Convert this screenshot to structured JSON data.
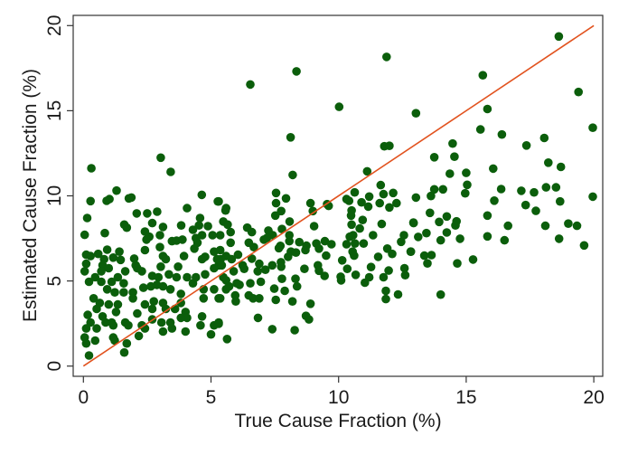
{
  "chart_data": {
    "type": "scatter",
    "title": "",
    "xlabel": "True Cause Fraction (%)",
    "ylabel": "Estimated Cause Fraction (%)",
    "xlim": [
      -0.4,
      20.35
    ],
    "ylim": [
      -0.6,
      20.6
    ],
    "xticks": [
      "0",
      "5",
      "10",
      "15",
      "20"
    ],
    "yticks": [
      "0",
      "5",
      "10",
      "15",
      "20"
    ],
    "grid": false,
    "legend": "none",
    "marker_color": "#0b5e0b",
    "reference_line": {
      "label": "",
      "x": [
        0,
        20
      ],
      "y": [
        0,
        20
      ],
      "color": "#e2531f"
    },
    "points": [
      [
        18.63,
        19.36
      ],
      [
        15.65,
        17.08
      ],
      [
        19.4,
        16.1
      ],
      [
        15.83,
        15.1
      ],
      [
        19.96,
        14.0
      ],
      [
        15.56,
        13.9
      ],
      [
        16.4,
        13.6
      ],
      [
        18.06,
        13.4
      ],
      [
        14.47,
        13.07
      ],
      [
        17.36,
        12.96
      ],
      [
        13.75,
        12.27
      ],
      [
        14.54,
        12.3
      ],
      [
        18.22,
        11.95
      ],
      [
        18.71,
        11.7
      ],
      [
        16.06,
        11.6
      ],
      [
        14.36,
        11.3
      ],
      [
        15.0,
        11.35
      ],
      [
        15.04,
        10.65
      ],
      [
        14.96,
        10.15
      ],
      [
        16.37,
        10.4
      ],
      [
        17.16,
        10.3
      ],
      [
        17.66,
        10.2
      ],
      [
        18.13,
        10.5
      ],
      [
        18.52,
        10.5
      ],
      [
        18.68,
        9.67
      ],
      [
        19.96,
        9.95
      ],
      [
        16.1,
        9.72
      ],
      [
        17.33,
        9.46
      ],
      [
        17.73,
        9.12
      ],
      [
        15.83,
        8.84
      ],
      [
        16.64,
        8.24
      ],
      [
        18.1,
        8.24
      ],
      [
        19.0,
        8.37
      ],
      [
        19.34,
        8.24
      ],
      [
        19.62,
        7.09
      ],
      [
        18.64,
        7.48
      ],
      [
        16.5,
        7.39
      ],
      [
        15.83,
        7.62
      ],
      [
        14.76,
        7.48
      ],
      [
        15.27,
        6.26
      ],
      [
        14.65,
        6.03
      ],
      [
        14.0,
        4.2
      ],
      [
        14.62,
        8.5
      ],
      [
        14.58,
        8.26
      ],
      [
        14.24,
        8.79
      ],
      [
        14.24,
        7.85
      ],
      [
        14.0,
        7.39
      ],
      [
        13.94,
        8.47
      ],
      [
        14.09,
        10.38
      ],
      [
        13.75,
        10.38
      ],
      [
        13.62,
        9.99
      ],
      [
        13.58,
        9.0
      ],
      [
        13.44,
        7.81
      ],
      [
        13.64,
        6.52
      ],
      [
        13.36,
        6.49
      ],
      [
        13.48,
        6.03
      ],
      [
        13.12,
        7.59
      ],
      [
        12.93,
        8.43
      ],
      [
        13.03,
        9.9
      ],
      [
        13.03,
        14.85
      ],
      [
        12.83,
        6.72
      ],
      [
        6.54,
        16.54
      ],
      [
        8.35,
        17.31
      ],
      [
        10.02,
        15.23
      ],
      [
        8.12,
        13.44
      ],
      [
        8.2,
        11.23
      ],
      [
        11.79,
        12.91
      ],
      [
        11.99,
        12.94
      ],
      [
        11.12,
        11.44
      ],
      [
        11.65,
        10.63
      ],
      [
        10.63,
        10.2
      ],
      [
        11.76,
        10.1
      ],
      [
        12.14,
        10.17
      ],
      [
        11.2,
        9.96
      ],
      [
        10.9,
        9.62
      ],
      [
        11.61,
        9.57
      ],
      [
        12.27,
        9.57
      ],
      [
        11.99,
        9.32
      ],
      [
        10.31,
        9.81
      ],
      [
        10.41,
        9.71
      ],
      [
        11.16,
        9.37
      ],
      [
        10.51,
        9.14
      ],
      [
        10.49,
        8.84
      ],
      [
        10.94,
        8.58
      ],
      [
        10.51,
        8.31
      ],
      [
        10.83,
        8.08
      ],
      [
        11.69,
        8.35
      ],
      [
        11.35,
        7.69
      ],
      [
        10.44,
        7.6
      ],
      [
        10.57,
        7.69
      ],
      [
        10.31,
        7.16
      ],
      [
        10.64,
        7.2
      ],
      [
        10.98,
        7.2
      ],
      [
        10.55,
        6.72
      ],
      [
        10.61,
        6.49
      ],
      [
        10.14,
        6.21
      ],
      [
        10.34,
        5.71
      ],
      [
        10.67,
        5.36
      ],
      [
        10.08,
        5.25
      ],
      [
        10.1,
        5.04
      ],
      [
        11.03,
        4.9
      ],
      [
        11.2,
        5.22
      ],
      [
        11.27,
        5.82
      ],
      [
        11.76,
        5.22
      ],
      [
        11.96,
        5.61
      ],
      [
        11.55,
        6.42
      ],
      [
        11.91,
        6.9
      ],
      [
        12.1,
        6.59
      ],
      [
        11.85,
        4.42
      ],
      [
        11.85,
        3.94
      ],
      [
        12.33,
        4.21
      ],
      [
        12.58,
        5.75
      ],
      [
        12.61,
        5.34
      ],
      [
        12.45,
        7.3
      ],
      [
        12.56,
        7.69
      ],
      [
        12.83,
        6.72
      ],
      [
        12.94,
        8.4
      ],
      [
        11.88,
        18.16
      ],
      [
        9.55,
        9.51
      ],
      [
        9.61,
        9.41
      ],
      [
        8.9,
        9.57
      ],
      [
        8.99,
        9.11
      ],
      [
        9.04,
        8.22
      ],
      [
        8.46,
        7.28
      ],
      [
        8.74,
        7.07
      ],
      [
        8.7,
        6.81
      ],
      [
        9.13,
        7.2
      ],
      [
        9.23,
        6.9
      ],
      [
        9.46,
        7.34
      ],
      [
        9.72,
        7.16
      ],
      [
        9.51,
        6.49
      ],
      [
        9.19,
        5.92
      ],
      [
        9.23,
        5.6
      ],
      [
        9.45,
        5.3
      ],
      [
        8.66,
        5.71
      ],
      [
        8.9,
        3.66
      ],
      [
        8.72,
        2.95
      ],
      [
        8.84,
        2.74
      ],
      [
        8.28,
        2.11
      ],
      [
        7.4,
        2.17
      ],
      [
        6.84,
        2.83
      ],
      [
        5.63,
        1.59
      ],
      [
        5.3,
        2.56
      ],
      [
        7.55,
        10.17
      ],
      [
        7.94,
        9.85
      ],
      [
        7.55,
        9.57
      ],
      [
        7.75,
        9.11
      ],
      [
        7.52,
        8.84
      ],
      [
        8.08,
        8.49
      ],
      [
        7.78,
        8.05
      ],
      [
        8.07,
        7.69
      ],
      [
        6.42,
        8.13
      ],
      [
        6.6,
        7.87
      ],
      [
        7.25,
        7.96
      ],
      [
        7.42,
        7.69
      ],
      [
        7.07,
        7.43
      ],
      [
        7.19,
        7.52
      ],
      [
        6.48,
        7.25
      ],
      [
        6.68,
        6.99
      ],
      [
        7.72,
        7.06
      ],
      [
        7.66,
        6.93
      ],
      [
        8.07,
        7.34
      ],
      [
        8.13,
        6.72
      ],
      [
        8.33,
        6.67
      ],
      [
        8.02,
        6.42
      ],
      [
        7.74,
        6.1
      ],
      [
        7.75,
        5.84
      ],
      [
        7.4,
        5.92
      ],
      [
        6.89,
        6.01
      ],
      [
        6.83,
        5.57
      ],
      [
        7.13,
        5.66
      ],
      [
        6.24,
        5.92
      ],
      [
        6.3,
        5.71
      ],
      [
        5.81,
        6.28
      ],
      [
        6.06,
        6.54
      ],
      [
        6.6,
        6.31
      ],
      [
        5.89,
        5.57
      ],
      [
        5.48,
        5.22
      ],
      [
        5.59,
        5.04
      ],
      [
        6.01,
        4.86
      ],
      [
        6.12,
        4.77
      ],
      [
        6.54,
        4.86
      ],
      [
        6.95,
        4.95
      ],
      [
        7.78,
        5.13
      ],
      [
        8.31,
        5.13
      ],
      [
        8.37,
        4.68
      ],
      [
        7.48,
        4.55
      ],
      [
        7.89,
        4.42
      ],
      [
        6.48,
        4.15
      ],
      [
        6.65,
        3.98
      ],
      [
        6.89,
        3.98
      ],
      [
        5.95,
        4.15
      ],
      [
        5.97,
        3.8
      ],
      [
        5.59,
        4.51
      ],
      [
        5.71,
        4.68
      ],
      [
        5.3,
        3.98
      ],
      [
        7.54,
        3.89
      ],
      [
        8.19,
        3.8
      ],
      [
        5.77,
        7.87
      ],
      [
        5.77,
        7.25
      ],
      [
        5.48,
        8.49
      ],
      [
        5.65,
        8.31
      ],
      [
        5.59,
        9.28
      ],
      [
        5.57,
        9.14
      ],
      [
        5.3,
        9.67
      ],
      [
        5.36,
        7.69
      ],
      [
        5.36,
        6.81
      ],
      [
        5.38,
        6.28
      ],
      [
        5.3,
        5.92
      ],
      [
        5.59,
        6.46
      ],
      [
        0.31,
        11.62
      ],
      [
        3.03,
        12.24
      ],
      [
        3.42,
        11.41
      ],
      [
        1.3,
        10.31
      ],
      [
        0.28,
        9.69
      ],
      [
        0.91,
        9.71
      ],
      [
        1.02,
        9.81
      ],
      [
        1.78,
        9.85
      ],
      [
        1.88,
        9.9
      ],
      [
        4.64,
        10.06
      ],
      [
        5.27,
        9.67
      ],
      [
        4.06,
        9.28
      ],
      [
        0.15,
        8.7
      ],
      [
        2.09,
        8.97
      ],
      [
        2.5,
        8.97
      ],
      [
        2.89,
        9.07
      ],
      [
        2.7,
        8.4
      ],
      [
        4.57,
        8.7
      ],
      [
        1.6,
        8.31
      ],
      [
        1.7,
        8.13
      ],
      [
        0.84,
        7.81
      ],
      [
        0.05,
        7.71
      ],
      [
        3.12,
        8.17
      ],
      [
        3.83,
        8.26
      ],
      [
        2.41,
        7.9
      ],
      [
        2.58,
        7.6
      ],
      [
        2.47,
        7.43
      ],
      [
        3.0,
        7.69
      ],
      [
        4.29,
        8.01
      ],
      [
        4.53,
        8.26
      ],
      [
        4.88,
        8.22
      ],
      [
        5.06,
        7.69
      ],
      [
        4.65,
        7.69
      ],
      [
        4.41,
        7.52
      ],
      [
        3.47,
        7.34
      ],
      [
        3.65,
        7.37
      ],
      [
        3.88,
        7.43
      ],
      [
        4.35,
        6.9
      ],
      [
        4.47,
        7.25
      ],
      [
        3.0,
        6.99
      ],
      [
        2.41,
        6.81
      ],
      [
        0.11,
        6.54
      ],
      [
        0.28,
        6.46
      ],
      [
        0.58,
        6.59
      ],
      [
        0.93,
        6.84
      ],
      [
        1.41,
        6.72
      ],
      [
        0.81,
        6.28
      ],
      [
        1.17,
        6.37
      ],
      [
        1.46,
        6.24
      ],
      [
        1.99,
        6.31
      ],
      [
        2.05,
        5.92
      ],
      [
        3.12,
        6.46
      ],
      [
        3.23,
        6.28
      ],
      [
        3.94,
        6.46
      ],
      [
        3.71,
        5.84
      ],
      [
        3.03,
        5.84
      ],
      [
        4.65,
        6.28
      ],
      [
        4.77,
        6.42
      ],
      [
        5.12,
        6.72
      ],
      [
        5.24,
        6.28
      ],
      [
        0.11,
        6.01
      ],
      [
        0.05,
        5.57
      ],
      [
        0.75,
        5.92
      ],
      [
        0.7,
        5.57
      ],
      [
        0.99,
        5.75
      ],
      [
        1.64,
        5.57
      ],
      [
        2.11,
        5.75
      ],
      [
        2.29,
        5.57
      ],
      [
        2.7,
        5.3
      ],
      [
        2.94,
        5.22
      ],
      [
        3.35,
        5.39
      ],
      [
        3.65,
        5.22
      ],
      [
        4.06,
        5.22
      ],
      [
        4.41,
        5.22
      ],
      [
        4.77,
        5.39
      ],
      [
        5.12,
        5.75
      ],
      [
        5.42,
        5.92
      ],
      [
        0.22,
        4.95
      ],
      [
        0.46,
        5.22
      ],
      [
        0.7,
        4.95
      ],
      [
        1.11,
        4.95
      ],
      [
        1.35,
        5.22
      ],
      [
        1.58,
        4.86
      ],
      [
        0.93,
        4.51
      ],
      [
        1.23,
        4.33
      ],
      [
        1.58,
        4.33
      ],
      [
        1.94,
        4.33
      ],
      [
        1.94,
        3.98
      ],
      [
        2.35,
        4.6
      ],
      [
        2.64,
        4.68
      ],
      [
        2.88,
        4.77
      ],
      [
        3.12,
        4.68
      ],
      [
        3.41,
        4.51
      ],
      [
        3.82,
        4.24
      ],
      [
        4.29,
        4.86
      ],
      [
        4.71,
        4.51
      ],
      [
        5.12,
        4.51
      ],
      [
        4.71,
        3.98
      ],
      [
        5.36,
        3.98
      ],
      [
        0.4,
        3.98
      ],
      [
        0.64,
        3.71
      ],
      [
        0.52,
        3.36
      ],
      [
        0.99,
        3.62
      ],
      [
        1.35,
        3.62
      ],
      [
        1.28,
        3.18
      ],
      [
        2.41,
        3.62
      ],
      [
        2.76,
        3.8
      ],
      [
        2.7,
        3.36
      ],
      [
        3.12,
        3.71
      ],
      [
        3.23,
        3.36
      ],
      [
        2.11,
        3.09
      ],
      [
        3.59,
        3.36
      ],
      [
        3.82,
        3.71
      ],
      [
        4.0,
        3.18
      ],
      [
        0.17,
        3.01
      ],
      [
        0.28,
        2.56
      ],
      [
        0.11,
        2.21
      ],
      [
        0.05,
        1.68
      ],
      [
        0.11,
        1.33
      ],
      [
        0.75,
        2.92
      ],
      [
        0.87,
        2.56
      ],
      [
        1.11,
        2.56
      ],
      [
        0.52,
        2.21
      ],
      [
        0.46,
        1.5
      ],
      [
        1.17,
        2.39
      ],
      [
        1.64,
        2.56
      ],
      [
        1.76,
        2.39
      ],
      [
        1.17,
        1.68
      ],
      [
        1.23,
        1.5
      ],
      [
        1.7,
        1.33
      ],
      [
        1.6,
        0.8
      ],
      [
        0.22,
        0.62
      ],
      [
        2.29,
        2.39
      ],
      [
        2.17,
        1.77
      ],
      [
        2.41,
        2.21
      ],
      [
        2.7,
        2.74
      ],
      [
        3.06,
        2.56
      ],
      [
        3.12,
        2.03
      ],
      [
        3.47,
        2.21
      ],
      [
        3.41,
        2.56
      ],
      [
        4.0,
        2.03
      ],
      [
        4.06,
        2.83
      ],
      [
        3.82,
        2.83
      ],
      [
        4.59,
        2.39
      ],
      [
        4.65,
        2.92
      ],
      [
        5.0,
        1.86
      ],
      [
        5.12,
        2.39
      ],
      [
        5.3,
        2.48
      ]
    ]
  }
}
